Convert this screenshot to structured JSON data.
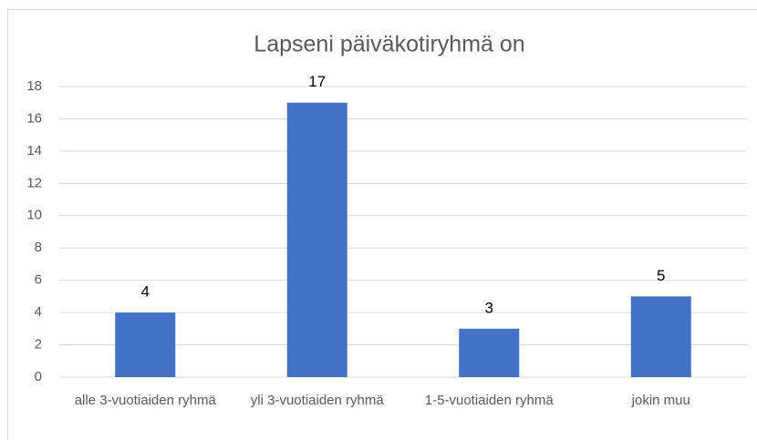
{
  "chart_data": {
    "type": "bar",
    "title": "Lapseni päiväkotiryhmä on",
    "categories": [
      "alle 3-vuotiaiden ryhmä",
      "yli 3-vuotiaiden ryhmä",
      "1-5-vuotiaiden ryhmä",
      "jokin muu"
    ],
    "values": [
      4,
      17,
      3,
      5
    ],
    "color": "#4472c4",
    "ylim": [
      0,
      18
    ],
    "yticks": [
      0,
      2,
      4,
      6,
      8,
      10,
      12,
      14,
      16,
      18
    ],
    "grid": true
  }
}
